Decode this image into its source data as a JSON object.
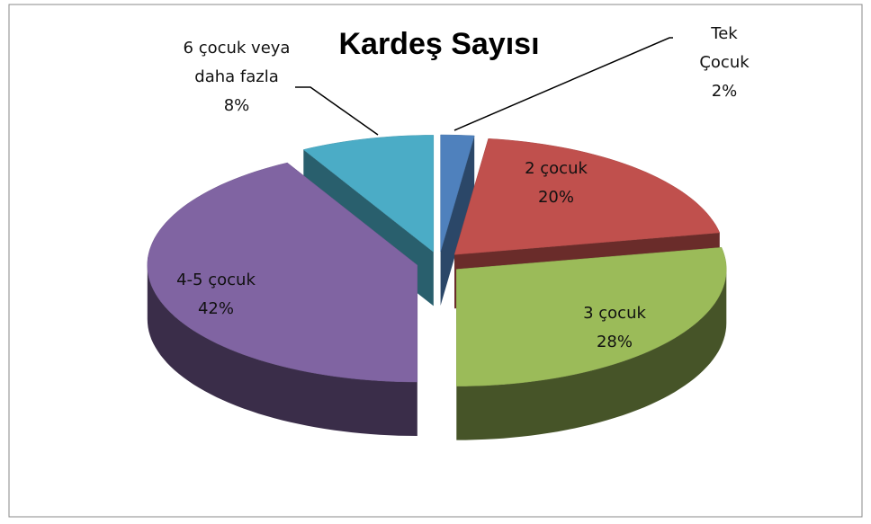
{
  "chart_data": {
    "type": "pie3d",
    "title": "Kardeş Sayısı",
    "categories": [
      "Tek Çocuk",
      "2 çocuk",
      "3 çocuk",
      "4-5 çocuk",
      "6 çocuk veya daha fazla"
    ],
    "values": [
      2,
      20,
      28,
      42,
      8
    ],
    "value_labels": [
      "2%",
      "20%",
      "28%",
      "42%",
      "8%"
    ],
    "colors": [
      "#4f81bd",
      "#c0504d",
      "#9bbb59",
      "#8064a2",
      "#4bacc6"
    ]
  }
}
